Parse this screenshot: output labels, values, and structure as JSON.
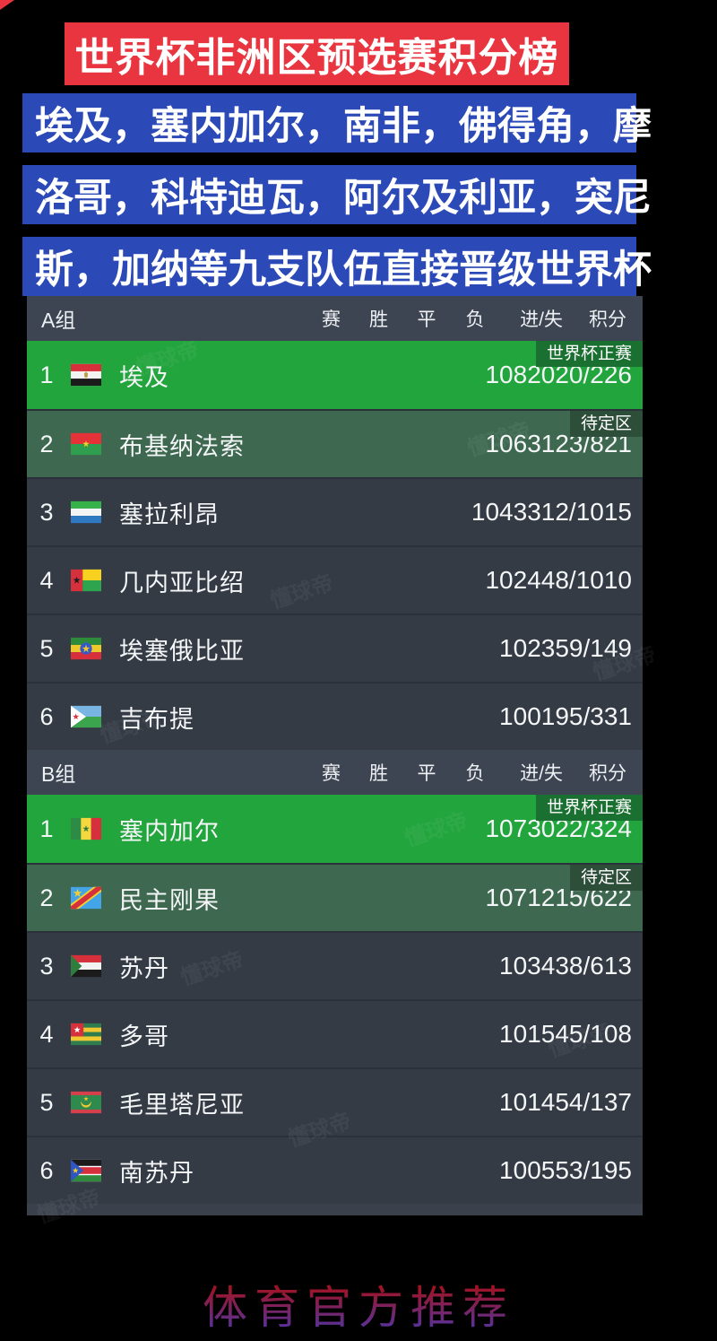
{
  "banner": {
    "title": "世界杯非洲区预选赛积分榜",
    "bg_color": "#e8353f"
  },
  "intro": {
    "bg_color": "#2b49b7",
    "lines": [
      "埃及，塞内加尔，南非，佛得角，摩",
      "洛哥，科特迪瓦，阿尔及利亚，突尼",
      "斯，加纳等九支队伍直接晋级世界杯"
    ]
  },
  "table": {
    "columns": [
      "赛",
      "胜",
      "平",
      "负",
      "进/失",
      "积分"
    ],
    "colors": {
      "header_bg": "#3e4552",
      "row_bg": "#343b45",
      "qualified_bg": "#23a53e",
      "qualified_badge_bg": "#1a7031",
      "pending_bg": "#3e6950",
      "pending_badge_bg": "#2d4e39"
    },
    "groups": [
      {
        "label": "A组",
        "rows": [
          {
            "rank": 1,
            "team": "埃及",
            "flag": "egypt",
            "played": 10,
            "win": 8,
            "draw": 2,
            "loss": 0,
            "goals": "20/2",
            "points": 26,
            "highlight": "qualified",
            "badge": "世界杯正赛"
          },
          {
            "rank": 2,
            "team": "布基纳法索",
            "flag": "burkina-faso",
            "played": 10,
            "win": 6,
            "draw": 3,
            "loss": 1,
            "goals": "23/8",
            "points": 21,
            "highlight": "pending",
            "badge": "待定区"
          },
          {
            "rank": 3,
            "team": "塞拉利昂",
            "flag": "sierra-leone",
            "played": 10,
            "win": 4,
            "draw": 3,
            "loss": 3,
            "goals": "12/10",
            "points": 15
          },
          {
            "rank": 4,
            "team": "几内亚比绍",
            "flag": "guinea-bissau",
            "played": 10,
            "win": 2,
            "draw": 4,
            "loss": 4,
            "goals": "8/10",
            "points": 10
          },
          {
            "rank": 5,
            "team": "埃塞俄比亚",
            "flag": "ethiopia",
            "played": 10,
            "win": 2,
            "draw": 3,
            "loss": 5,
            "goals": "9/14",
            "points": 9
          },
          {
            "rank": 6,
            "team": "吉布提",
            "flag": "djibouti",
            "played": 10,
            "win": 0,
            "draw": 1,
            "loss": 9,
            "goals": "5/33",
            "points": 1
          }
        ]
      },
      {
        "label": "B组",
        "rows": [
          {
            "rank": 1,
            "team": "塞内加尔",
            "flag": "senegal",
            "played": 10,
            "win": 7,
            "draw": 3,
            "loss": 0,
            "goals": "22/3",
            "points": 24,
            "highlight": "qualified",
            "badge": "世界杯正赛"
          },
          {
            "rank": 2,
            "team": "民主刚果",
            "flag": "dr-congo",
            "played": 10,
            "win": 7,
            "draw": 1,
            "loss": 2,
            "goals": "15/6",
            "points": 22,
            "highlight": "pending",
            "badge": "待定区"
          },
          {
            "rank": 3,
            "team": "苏丹",
            "flag": "sudan",
            "played": 10,
            "win": 3,
            "draw": 4,
            "loss": 3,
            "goals": "8/6",
            "points": 13
          },
          {
            "rank": 4,
            "team": "多哥",
            "flag": "togo",
            "played": 10,
            "win": 1,
            "draw": 5,
            "loss": 4,
            "goals": "5/10",
            "points": 8
          },
          {
            "rank": 5,
            "team": "毛里塔尼亚",
            "flag": "mauritania",
            "played": 10,
            "win": 1,
            "draw": 4,
            "loss": 5,
            "goals": "4/13",
            "points": 7
          },
          {
            "rank": 6,
            "team": "南苏丹",
            "flag": "south-sudan",
            "played": 10,
            "win": 0,
            "draw": 5,
            "loss": 5,
            "goals": "3/19",
            "points": 5
          }
        ]
      }
    ]
  },
  "watermark": {
    "text": "懂球帝"
  },
  "footer": {
    "text": "体育官方推荐"
  }
}
